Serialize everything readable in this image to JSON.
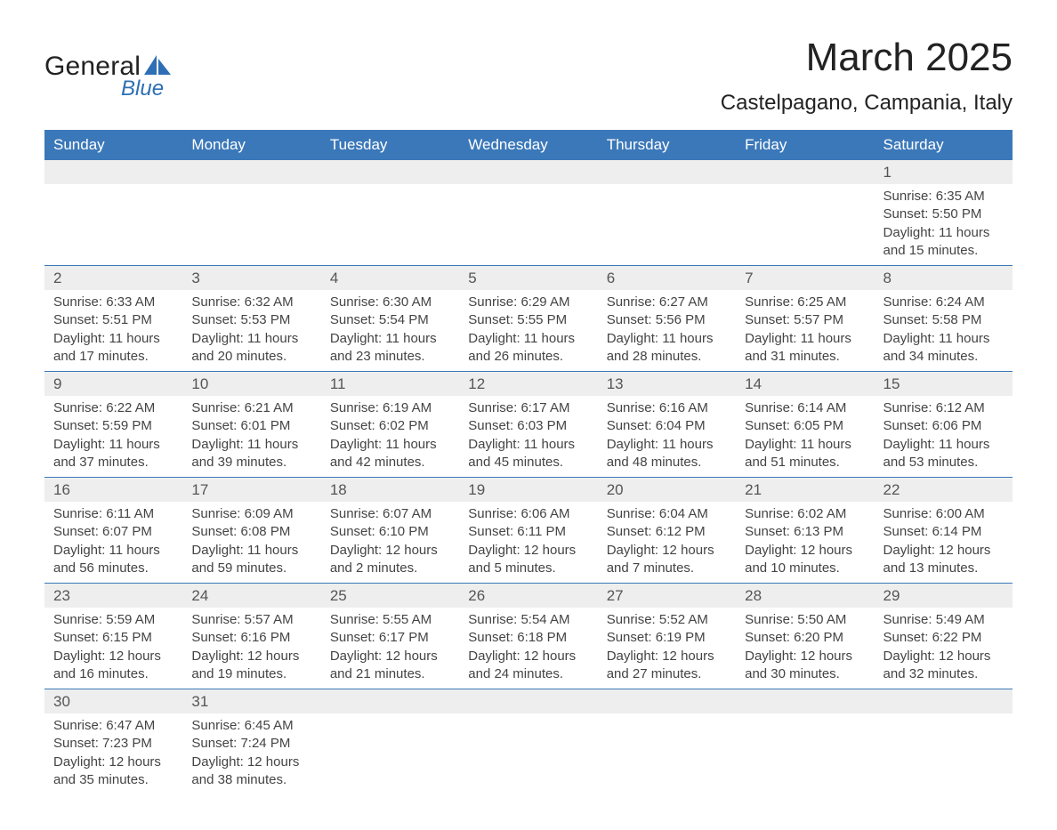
{
  "logo": {
    "text_main": "General",
    "text_sub": "Blue"
  },
  "title": {
    "month": "March 2025",
    "location": "Castelpagano, Campania, Italy"
  },
  "colors": {
    "header_bg": "#3b78b9",
    "header_text": "#ffffff",
    "daynum_bg": "#eeeeee",
    "text": "#333333",
    "border": "#3b78b9",
    "logo_blue": "#2d6eb5"
  },
  "day_headers": [
    "Sunday",
    "Monday",
    "Tuesday",
    "Wednesday",
    "Thursday",
    "Friday",
    "Saturday"
  ],
  "weeks": [
    [
      null,
      null,
      null,
      null,
      null,
      null,
      {
        "n": "1",
        "sr": "Sunrise: 6:35 AM",
        "ss": "Sunset: 5:50 PM",
        "dl1": "Daylight: 11 hours",
        "dl2": "and 15 minutes."
      }
    ],
    [
      {
        "n": "2",
        "sr": "Sunrise: 6:33 AM",
        "ss": "Sunset: 5:51 PM",
        "dl1": "Daylight: 11 hours",
        "dl2": "and 17 minutes."
      },
      {
        "n": "3",
        "sr": "Sunrise: 6:32 AM",
        "ss": "Sunset: 5:53 PM",
        "dl1": "Daylight: 11 hours",
        "dl2": "and 20 minutes."
      },
      {
        "n": "4",
        "sr": "Sunrise: 6:30 AM",
        "ss": "Sunset: 5:54 PM",
        "dl1": "Daylight: 11 hours",
        "dl2": "and 23 minutes."
      },
      {
        "n": "5",
        "sr": "Sunrise: 6:29 AM",
        "ss": "Sunset: 5:55 PM",
        "dl1": "Daylight: 11 hours",
        "dl2": "and 26 minutes."
      },
      {
        "n": "6",
        "sr": "Sunrise: 6:27 AM",
        "ss": "Sunset: 5:56 PM",
        "dl1": "Daylight: 11 hours",
        "dl2": "and 28 minutes."
      },
      {
        "n": "7",
        "sr": "Sunrise: 6:25 AM",
        "ss": "Sunset: 5:57 PM",
        "dl1": "Daylight: 11 hours",
        "dl2": "and 31 minutes."
      },
      {
        "n": "8",
        "sr": "Sunrise: 6:24 AM",
        "ss": "Sunset: 5:58 PM",
        "dl1": "Daylight: 11 hours",
        "dl2": "and 34 minutes."
      }
    ],
    [
      {
        "n": "9",
        "sr": "Sunrise: 6:22 AM",
        "ss": "Sunset: 5:59 PM",
        "dl1": "Daylight: 11 hours",
        "dl2": "and 37 minutes."
      },
      {
        "n": "10",
        "sr": "Sunrise: 6:21 AM",
        "ss": "Sunset: 6:01 PM",
        "dl1": "Daylight: 11 hours",
        "dl2": "and 39 minutes."
      },
      {
        "n": "11",
        "sr": "Sunrise: 6:19 AM",
        "ss": "Sunset: 6:02 PM",
        "dl1": "Daylight: 11 hours",
        "dl2": "and 42 minutes."
      },
      {
        "n": "12",
        "sr": "Sunrise: 6:17 AM",
        "ss": "Sunset: 6:03 PM",
        "dl1": "Daylight: 11 hours",
        "dl2": "and 45 minutes."
      },
      {
        "n": "13",
        "sr": "Sunrise: 6:16 AM",
        "ss": "Sunset: 6:04 PM",
        "dl1": "Daylight: 11 hours",
        "dl2": "and 48 minutes."
      },
      {
        "n": "14",
        "sr": "Sunrise: 6:14 AM",
        "ss": "Sunset: 6:05 PM",
        "dl1": "Daylight: 11 hours",
        "dl2": "and 51 minutes."
      },
      {
        "n": "15",
        "sr": "Sunrise: 6:12 AM",
        "ss": "Sunset: 6:06 PM",
        "dl1": "Daylight: 11 hours",
        "dl2": "and 53 minutes."
      }
    ],
    [
      {
        "n": "16",
        "sr": "Sunrise: 6:11 AM",
        "ss": "Sunset: 6:07 PM",
        "dl1": "Daylight: 11 hours",
        "dl2": "and 56 minutes."
      },
      {
        "n": "17",
        "sr": "Sunrise: 6:09 AM",
        "ss": "Sunset: 6:08 PM",
        "dl1": "Daylight: 11 hours",
        "dl2": "and 59 minutes."
      },
      {
        "n": "18",
        "sr": "Sunrise: 6:07 AM",
        "ss": "Sunset: 6:10 PM",
        "dl1": "Daylight: 12 hours",
        "dl2": "and 2 minutes."
      },
      {
        "n": "19",
        "sr": "Sunrise: 6:06 AM",
        "ss": "Sunset: 6:11 PM",
        "dl1": "Daylight: 12 hours",
        "dl2": "and 5 minutes."
      },
      {
        "n": "20",
        "sr": "Sunrise: 6:04 AM",
        "ss": "Sunset: 6:12 PM",
        "dl1": "Daylight: 12 hours",
        "dl2": "and 7 minutes."
      },
      {
        "n": "21",
        "sr": "Sunrise: 6:02 AM",
        "ss": "Sunset: 6:13 PM",
        "dl1": "Daylight: 12 hours",
        "dl2": "and 10 minutes."
      },
      {
        "n": "22",
        "sr": "Sunrise: 6:00 AM",
        "ss": "Sunset: 6:14 PM",
        "dl1": "Daylight: 12 hours",
        "dl2": "and 13 minutes."
      }
    ],
    [
      {
        "n": "23",
        "sr": "Sunrise: 5:59 AM",
        "ss": "Sunset: 6:15 PM",
        "dl1": "Daylight: 12 hours",
        "dl2": "and 16 minutes."
      },
      {
        "n": "24",
        "sr": "Sunrise: 5:57 AM",
        "ss": "Sunset: 6:16 PM",
        "dl1": "Daylight: 12 hours",
        "dl2": "and 19 minutes."
      },
      {
        "n": "25",
        "sr": "Sunrise: 5:55 AM",
        "ss": "Sunset: 6:17 PM",
        "dl1": "Daylight: 12 hours",
        "dl2": "and 21 minutes."
      },
      {
        "n": "26",
        "sr": "Sunrise: 5:54 AM",
        "ss": "Sunset: 6:18 PM",
        "dl1": "Daylight: 12 hours",
        "dl2": "and 24 minutes."
      },
      {
        "n": "27",
        "sr": "Sunrise: 5:52 AM",
        "ss": "Sunset: 6:19 PM",
        "dl1": "Daylight: 12 hours",
        "dl2": "and 27 minutes."
      },
      {
        "n": "28",
        "sr": "Sunrise: 5:50 AM",
        "ss": "Sunset: 6:20 PM",
        "dl1": "Daylight: 12 hours",
        "dl2": "and 30 minutes."
      },
      {
        "n": "29",
        "sr": "Sunrise: 5:49 AM",
        "ss": "Sunset: 6:22 PM",
        "dl1": "Daylight: 12 hours",
        "dl2": "and 32 minutes."
      }
    ],
    [
      {
        "n": "30",
        "sr": "Sunrise: 6:47 AM",
        "ss": "Sunset: 7:23 PM",
        "dl1": "Daylight: 12 hours",
        "dl2": "and 35 minutes."
      },
      {
        "n": "31",
        "sr": "Sunrise: 6:45 AM",
        "ss": "Sunset: 7:24 PM",
        "dl1": "Daylight: 12 hours",
        "dl2": "and 38 minutes."
      },
      null,
      null,
      null,
      null,
      null
    ]
  ]
}
